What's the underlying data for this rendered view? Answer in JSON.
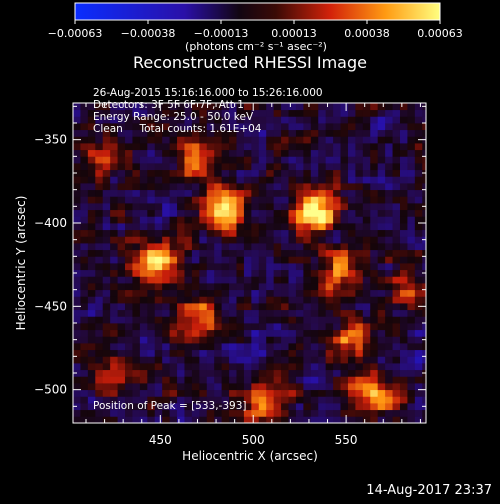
{
  "chart_data": {
    "type": "heatmap",
    "title": "Reconstructed RHESSI Image",
    "xlabel": "Heliocentric X (arcsec)",
    "ylabel": "Heliocentric Y (arcsec)",
    "xlim": [
      403,
      593
    ],
    "ylim": [
      -520,
      -328
    ],
    "x_ticks": [
      450,
      500,
      550
    ],
    "y_ticks": [
      -350,
      -400,
      -450,
      -500
    ],
    "colorbar": {
      "ticks": [
        "-0.00063",
        "-0.00038",
        "-0.00013",
        "0.00013",
        "0.00038",
        "0.00063"
      ],
      "range": [
        -0.00063,
        0.00063
      ],
      "unit_label": "(photons cm⁻² s⁻¹ asec⁻²)"
    },
    "annotations": [
      "26-Aug-2015 15:16:16.000 to 15:26:16.000",
      "Detectors: 3F 5F 6F 7F, Att 1",
      "Energy Range: 25.0 - 50.0 keV",
      "Clean     Total counts: 1.61E+04"
    ],
    "peak_label": "Position of Peak = [533,-393]",
    "peak": {
      "x": 533,
      "y": -393
    },
    "timestamp": "14-Aug-2017 23:37",
    "bright_sources": [
      {
        "x": 533,
        "y": -393,
        "intensity": 0.00063
      },
      {
        "x": 448,
        "y": -423,
        "intensity": 0.0005
      },
      {
        "x": 482,
        "y": -392,
        "intensity": 0.0005
      },
      {
        "x": 468,
        "y": -358,
        "intensity": 0.00038
      },
      {
        "x": 547,
        "y": -430,
        "intensity": 0.00038
      },
      {
        "x": 552,
        "y": -472,
        "intensity": 0.00038
      },
      {
        "x": 565,
        "y": -505,
        "intensity": 0.00045
      },
      {
        "x": 505,
        "y": -508,
        "intensity": 0.0004
      },
      {
        "x": 470,
        "y": -458,
        "intensity": 0.00035
      },
      {
        "x": 420,
        "y": -360,
        "intensity": 0.0003
      },
      {
        "x": 425,
        "y": -490,
        "intensity": 0.0003
      },
      {
        "x": 585,
        "y": -440,
        "intensity": 0.0003
      }
    ]
  }
}
